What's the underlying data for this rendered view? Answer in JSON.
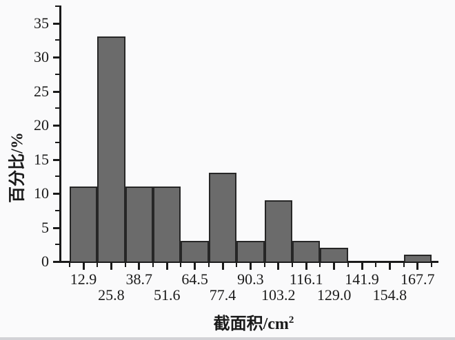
{
  "chart_data": {
    "type": "bar",
    "title": "",
    "xlabel": "截面积/cm²",
    "xlabel_base": "截面积/cm",
    "xlabel_sup": "2",
    "ylabel": "百分比/%",
    "categories": [
      "12.9",
      "25.8",
      "38.7",
      "51.6",
      "64.5",
      "77.4",
      "90.3",
      "103.2",
      "116.1",
      "129.0",
      "141.9",
      "154.8",
      "167.7"
    ],
    "values": [
      11,
      33,
      11,
      11,
      3,
      13,
      3,
      9,
      3,
      2,
      0,
      0,
      1
    ],
    "bin_width": 12.9,
    "units_sum": 100,
    "ylim": [
      0,
      37.5
    ],
    "y_major_ticks": [
      0,
      5,
      10,
      15,
      20,
      25,
      30,
      35
    ],
    "y_minor_step": 2.5,
    "x_tick_layout": "major ticks at bin centers (labeled, alternating two rows), minor ticks at bin edges",
    "grid": false,
    "legend": null,
    "colors": {
      "bar_fill": "#6b6b6b",
      "bar_stroke": "#262626",
      "axis": "#1a1a1a",
      "background": "#fafafb"
    }
  }
}
